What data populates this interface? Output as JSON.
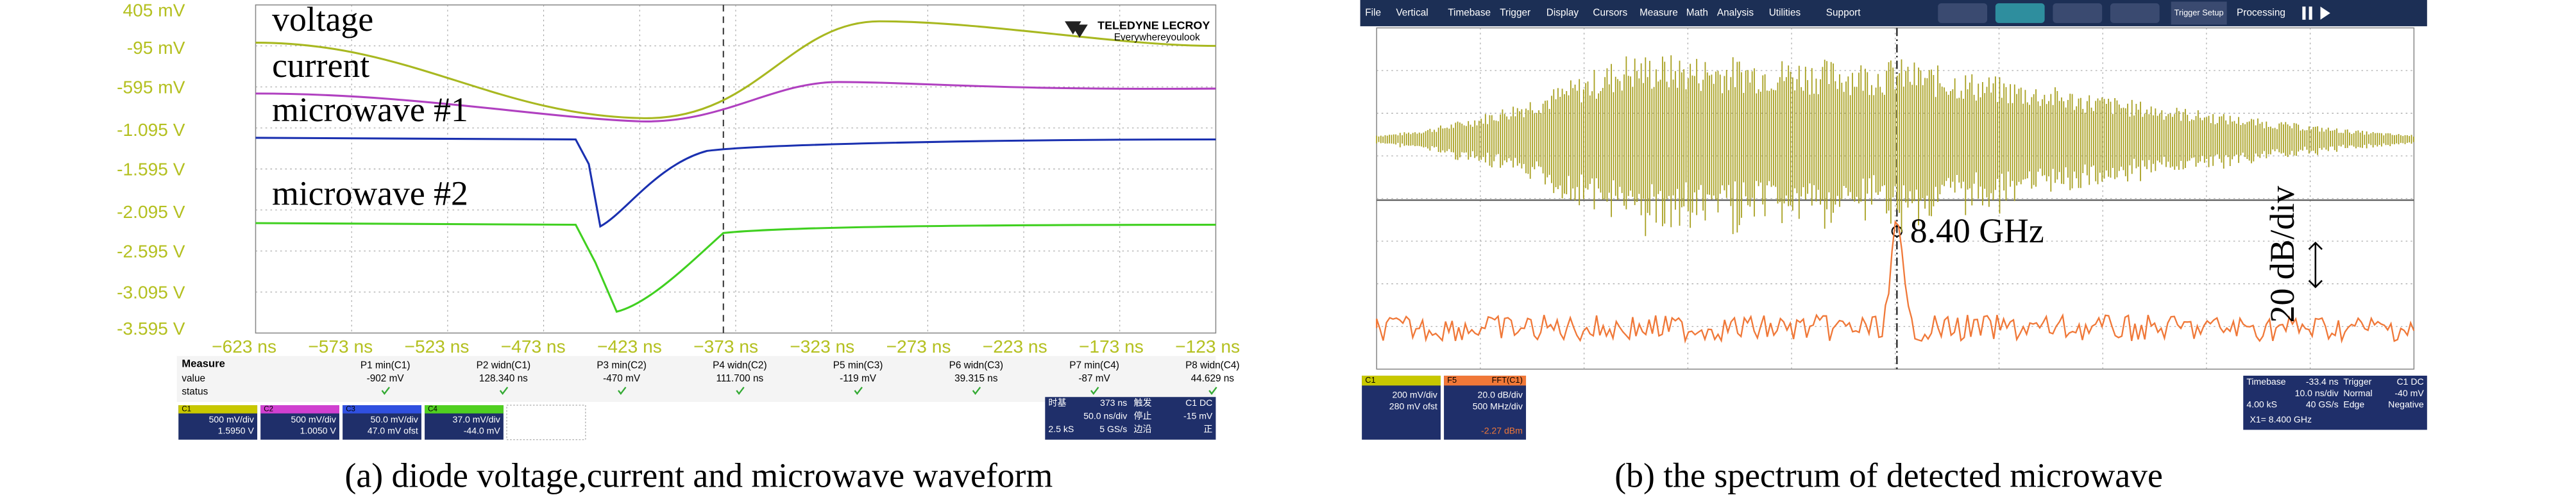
{
  "panel_a": {
    "trace_labels": [
      "voltage",
      "current",
      "microwave #1",
      "microwave #2"
    ],
    "y_axis_labels": [
      "405 mV",
      "-95 mV",
      "-595 mV",
      "-1.095 V",
      "-1.595 V",
      "-2.095 V",
      "-2.595 V",
      "-3.095 V",
      "-3.595 V"
    ],
    "x_axis_labels": [
      "−623 ns",
      "−573 ns",
      "−523 ns",
      "−473 ns",
      "−423 ns",
      "−373 ns",
      "−323 ns",
      "−273 ns",
      "−223 ns",
      "−173 ns",
      "−123 ns"
    ],
    "logo": {
      "brand": "TELEDYNE LECROY",
      "tagline": "Everywhereyoulook"
    },
    "measure": {
      "header": "Measure",
      "row_labels": [
        "value",
        "status"
      ],
      "params": [
        {
          "name": "P1 min(C1)",
          "value": "-902 mV"
        },
        {
          "name": "P2 widn(C1)",
          "value": "128.340 ns"
        },
        {
          "name": "P3 min(C2)",
          "value": "-470 mV"
        },
        {
          "name": "P4 widn(C2)",
          "value": "111.700 ns"
        },
        {
          "name": "P5 min(C3)",
          "value": "-119 mV"
        },
        {
          "name": "P6 widn(C3)",
          "value": "39.315 ns"
        },
        {
          "name": "P7 min(C4)",
          "value": "-87 mV"
        },
        {
          "name": "P8 widn(C4)",
          "value": "44.629 ns"
        }
      ]
    },
    "channels": [
      {
        "id": "C1",
        "scale": "500 mV/div",
        "offset": "1.5950 V"
      },
      {
        "id": "C2",
        "scale": "500 mV/div",
        "offset": "1.0050 V"
      },
      {
        "id": "C3",
        "scale": "50.0 mV/div",
        "offset": "47.0 mV ofst"
      },
      {
        "id": "C4",
        "scale": "37.0 mV/div",
        "offset": "-44.0 mV"
      }
    ],
    "timebase": {
      "label": "时基",
      "delay": "373 ns",
      "scale": "50.0 ns/div",
      "samples": "2.5 kS",
      "rate": "5 GS/s"
    },
    "trigger": {
      "label": "触发",
      "source": "C1 DC",
      "mode": "停止",
      "level": "-15 mV",
      "type": "边沿",
      "slope": "正"
    },
    "caption": "(a) diode voltage,current and microwave waveform"
  },
  "panel_b": {
    "menu": [
      "File",
      "Vertical",
      "Timebase",
      "Trigger",
      "Display",
      "Cursors",
      "Measure",
      "Math",
      "Analysis",
      "Utilities",
      "Support"
    ],
    "trigger_setup": "Trigger Setup",
    "processing": "Processing",
    "peak_label": "8.40 GHz",
    "scale_label": "20 dB/div",
    "channel": {
      "id": "C1",
      "scale": "200 mV/div",
      "offset": "280 mV ofst"
    },
    "math": {
      "id": "F5",
      "name": "FFT(C1)",
      "scale": "20.0 dB/div",
      "span": "500 MHz/div",
      "value": "-2.27 dBm"
    },
    "timebase": {
      "label": "Timebase",
      "delay": "-33.4 ns",
      "scale": "10.0 ns/div",
      "samples": "4.00 kS",
      "rate": "40 GS/s"
    },
    "trigger": {
      "label": "Trigger",
      "source": "C1 DC",
      "mode": "Normal",
      "level": "-40 mV",
      "type": "Edge",
      "slope": "Negative"
    },
    "cursor": "X1= 8.400 GHz",
    "caption": "(b) the spectrum of detected microwave"
  }
}
